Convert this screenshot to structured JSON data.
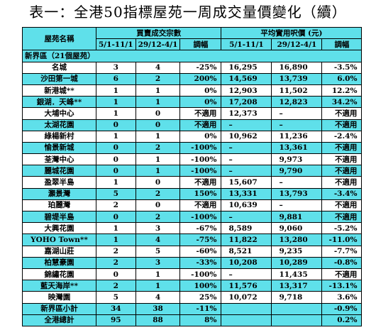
{
  "title": "表一：全港50指標屋苑一周成交量價變化（續）",
  "headers": {
    "estate": "屋苑名稱",
    "volume_group": "買賣成交宗數",
    "price_group": "平均實用呎價 (元)",
    "period1": "5/1-11/1",
    "period2": "29/12-4/1",
    "change": "調幅"
  },
  "region": "新界區（21個屋苑）",
  "rows": [
    {
      "name": "名城",
      "v1": "3",
      "v2": "4",
      "vc": "-25%",
      "p1": "16,295",
      "p2": "16,890",
      "pc": "-3.5%",
      "hl": false
    },
    {
      "name": "沙田第一城",
      "v1": "6",
      "v2": "2",
      "vc": "200%",
      "p1": "14,569",
      "p2": "13,739",
      "pc": "6.0%",
      "hl": true
    },
    {
      "name": "新港城**",
      "v1": "1",
      "v2": "1",
      "vc": "0%",
      "p1": "12,903",
      "p2": "11,502",
      "pc": "12.2%",
      "hl": false
    },
    {
      "name": "銀湖．天峰**",
      "v1": "1",
      "v2": "1",
      "vc": "0%",
      "p1": "17,208",
      "p2": "12,823",
      "pc": "34.2%",
      "hl": true
    },
    {
      "name": "大埔中心",
      "v1": "1",
      "v2": "0",
      "vc": "不適用",
      "p1": "12,373",
      "p2": "–",
      "pc": "不適用",
      "hl": false
    },
    {
      "name": "太湖花園",
      "v1": "0",
      "v2": "0",
      "vc": "不適用",
      "p1": "–",
      "p2": "–",
      "pc": "不適用",
      "hl": true
    },
    {
      "name": "綠楊新村",
      "v1": "1",
      "v2": "1",
      "vc": "0%",
      "p1": "10,962",
      "p2": "11,236",
      "pc": "-2.4%",
      "hl": false
    },
    {
      "name": "愉景新城",
      "v1": "0",
      "v2": "2",
      "vc": "-100%",
      "p1": "–",
      "p2": "13,361",
      "pc": "不適用",
      "hl": true
    },
    {
      "name": "荃灣中心",
      "v1": "0",
      "v2": "1",
      "vc": "-100%",
      "p1": "–",
      "p2": "9,973",
      "pc": "不適用",
      "hl": false
    },
    {
      "name": "麗城花園",
      "v1": "0",
      "v2": "1",
      "vc": "-100%",
      "p1": "–",
      "p2": "9,790",
      "pc": "不適用",
      "hl": true
    },
    {
      "name": "盈翠半島",
      "v1": "1",
      "v2": "0",
      "vc": "不適用",
      "p1": "15,607",
      "p2": "–",
      "pc": "不適用",
      "hl": false
    },
    {
      "name": "灝景灣",
      "v1": "5",
      "v2": "2",
      "vc": "150%",
      "p1": "13,331",
      "p2": "13,793",
      "pc": "-3.4%",
      "hl": true
    },
    {
      "name": "珀麗灣",
      "v1": "2",
      "v2": "0",
      "vc": "不適用",
      "p1": "10,639",
      "p2": "–",
      "pc": "不適用",
      "hl": false
    },
    {
      "name": "碧堤半島",
      "v1": "0",
      "v2": "2",
      "vc": "-100%",
      "p1": "–",
      "p2": "9,881",
      "pc": "不適用",
      "hl": true
    },
    {
      "name": "大興花園",
      "v1": "1",
      "v2": "3",
      "vc": "-67%",
      "p1": "8,589",
      "p2": "9,060",
      "pc": "-5.2%",
      "hl": false
    },
    {
      "name": "YOHO Town**",
      "v1": "1",
      "v2": "4",
      "vc": "-75%",
      "p1": "11,822",
      "p2": "13,280",
      "pc": "-11.0%",
      "hl": true
    },
    {
      "name": "嘉湖山莊",
      "v1": "2",
      "v2": "5",
      "vc": "-60%",
      "p1": "8,521",
      "p2": "9,235",
      "pc": "-7.7%",
      "hl": false
    },
    {
      "name": "柏慧豪園",
      "v1": "2",
      "v2": "3",
      "vc": "-33%",
      "p1": "10,208",
      "p2": "10,289",
      "pc": "-0.8%",
      "hl": true
    },
    {
      "name": "錦繡花園",
      "v1": "0",
      "v2": "1",
      "vc": "-100%",
      "p1": "–",
      "p2": "11,435",
      "pc": "不適用",
      "hl": false
    },
    {
      "name": "藍天海岸**",
      "v1": "2",
      "v2": "1",
      "vc": "100%",
      "p1": "11,576",
      "p2": "13,317",
      "pc": "-13.1%",
      "hl": true
    },
    {
      "name": "映灣園",
      "v1": "5",
      "v2": "4",
      "vc": "25%",
      "p1": "10,072",
      "p2": "9,718",
      "pc": "3.6%",
      "hl": false
    }
  ],
  "subtotal": {
    "name": "新界區小計",
    "v1": "34",
    "v2": "38",
    "vc": "-11%",
    "p1": "",
    "p2": "",
    "pc": "-0.9%"
  },
  "total": {
    "name": "全港總計",
    "v1": "95",
    "v2": "88",
    "vc": "8%",
    "p1": "",
    "p2": "",
    "pc": "0.2%"
  }
}
